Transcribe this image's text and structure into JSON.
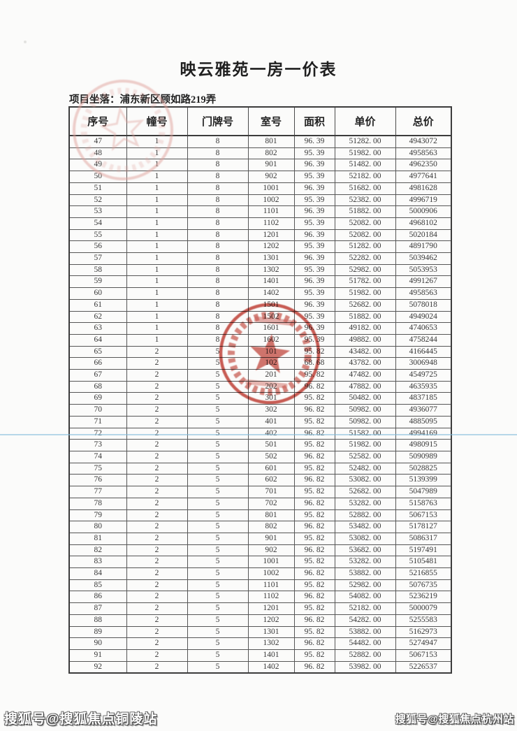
{
  "document": {
    "title": "映云雅苑一房一价表",
    "project_location": "项目坐落：浦东新区顾如路219弄"
  },
  "table": {
    "headers": [
      "序号",
      "幢号",
      "门牌号",
      "室号",
      "面积",
      "单价",
      "总价"
    ],
    "rows": [
      [
        "47",
        "1",
        "8",
        "801",
        "96. 39",
        "51282. 00",
        "4943072"
      ],
      [
        "48",
        "1",
        "8",
        "802",
        "95. 39",
        "51982. 00",
        "4958563"
      ],
      [
        "49",
        "1",
        "8",
        "901",
        "96. 39",
        "51482. 00",
        "4962350"
      ],
      [
        "50",
        "1",
        "8",
        "902",
        "95. 39",
        "52182. 00",
        "4977641"
      ],
      [
        "51",
        "1",
        "8",
        "1001",
        "96. 39",
        "51682. 00",
        "4981628"
      ],
      [
        "52",
        "1",
        "8",
        "1002",
        "95. 39",
        "52382. 00",
        "4996719"
      ],
      [
        "53",
        "1",
        "8",
        "1101",
        "96. 39",
        "51882. 00",
        "5000906"
      ],
      [
        "54",
        "1",
        "8",
        "1102",
        "95. 39",
        "52082. 00",
        "4968102"
      ],
      [
        "55",
        "1",
        "8",
        "1201",
        "96. 39",
        "52082. 00",
        "5020184"
      ],
      [
        "56",
        "1",
        "8",
        "1202",
        "95. 39",
        "51282. 00",
        "4891790"
      ],
      [
        "57",
        "1",
        "8",
        "1301",
        "96. 39",
        "52282. 00",
        "5039462"
      ],
      [
        "58",
        "1",
        "8",
        "1302",
        "95. 39",
        "52982. 00",
        "5053953"
      ],
      [
        "59",
        "1",
        "8",
        "1401",
        "96. 39",
        "51782. 00",
        "4991267"
      ],
      [
        "60",
        "1",
        "8",
        "1402",
        "95. 39",
        "51982. 00",
        "4958563"
      ],
      [
        "61",
        "1",
        "8",
        "1501",
        "96. 39",
        "52682. 00",
        "5078018"
      ],
      [
        "62",
        "1",
        "8",
        "1502",
        "95. 39",
        "51882. 00",
        "4949024"
      ],
      [
        "63",
        "1",
        "8",
        "1601",
        "96. 39",
        "49182. 00",
        "4740653"
      ],
      [
        "64",
        "1",
        "8",
        "1602",
        "95. 39",
        "49882. 00",
        "4758244"
      ],
      [
        "65",
        "2",
        "5",
        "101",
        "95. 82",
        "43482. 00",
        "4166445"
      ],
      [
        "66",
        "2",
        "5",
        "102",
        "68. 68",
        "43782. 00",
        "3006948"
      ],
      [
        "67",
        "2",
        "5",
        "201",
        "95. 82",
        "47482. 00",
        "4549725"
      ],
      [
        "68",
        "2",
        "5",
        "202",
        "96. 82",
        "47882. 00",
        "4635935"
      ],
      [
        "69",
        "2",
        "5",
        "301",
        "95. 82",
        "50482. 00",
        "4837185"
      ],
      [
        "70",
        "2",
        "5",
        "302",
        "96. 82",
        "50982. 00",
        "4936077"
      ],
      [
        "71",
        "2",
        "5",
        "401",
        "95. 82",
        "50982. 00",
        "4885095"
      ],
      [
        "72",
        "2",
        "5",
        "402",
        "96. 82",
        "51582. 00",
        "4994169"
      ],
      [
        "73",
        "2",
        "5",
        "501",
        "95. 82",
        "51982. 00",
        "4980915"
      ],
      [
        "74",
        "2",
        "5",
        "502",
        "96. 82",
        "52582. 00",
        "5090989"
      ],
      [
        "75",
        "2",
        "5",
        "601",
        "95. 82",
        "52482. 00",
        "5028825"
      ],
      [
        "76",
        "2",
        "5",
        "602",
        "96. 82",
        "53082. 00",
        "5139399"
      ],
      [
        "77",
        "2",
        "5",
        "701",
        "95. 82",
        "52682. 00",
        "5047989"
      ],
      [
        "78",
        "2",
        "5",
        "702",
        "96. 82",
        "53282. 00",
        "5158763"
      ],
      [
        "79",
        "2",
        "5",
        "801",
        "95. 82",
        "52882. 00",
        "5067153"
      ],
      [
        "80",
        "2",
        "5",
        "802",
        "96. 82",
        "53482. 00",
        "5178127"
      ],
      [
        "81",
        "2",
        "5",
        "901",
        "95. 82",
        "53082. 00",
        "5086317"
      ],
      [
        "82",
        "2",
        "5",
        "902",
        "96. 82",
        "53682. 00",
        "5197491"
      ],
      [
        "83",
        "2",
        "5",
        "1001",
        "95. 82",
        "53282. 00",
        "5105481"
      ],
      [
        "84",
        "2",
        "5",
        "1002",
        "96. 82",
        "53882. 00",
        "5216855"
      ],
      [
        "85",
        "2",
        "5",
        "1101",
        "95. 82",
        "52982. 00",
        "5076735"
      ],
      [
        "86",
        "2",
        "5",
        "1102",
        "96. 82",
        "54082. 00",
        "5236219"
      ],
      [
        "87",
        "2",
        "5",
        "1201",
        "95. 82",
        "52182. 00",
        "5000079"
      ],
      [
        "88",
        "2",
        "5",
        "1202",
        "96. 82",
        "54282. 00",
        "5255583"
      ],
      [
        "89",
        "2",
        "5",
        "1301",
        "95. 82",
        "53882. 00",
        "5162973"
      ],
      [
        "90",
        "2",
        "5",
        "1302",
        "96. 82",
        "54482. 00",
        "5274947"
      ],
      [
        "91",
        "2",
        "5",
        "1401",
        "95. 82",
        "52882. 00",
        "5067153"
      ],
      [
        "92",
        "2",
        "5",
        "1402",
        "96. 82",
        "53982. 00",
        "5226537"
      ]
    ]
  },
  "stamps": [
    {
      "description": "faint circular red seal with star, over table header area",
      "legible": false
    },
    {
      "description": "red circular seal with star and rim characters, over middle rows",
      "legible": false
    }
  ],
  "watermarks": {
    "bottom_left": "搜狐号@搜狐焦点铜陵站",
    "bottom_right": "搜狐号@搜狐焦点杭州站"
  },
  "colors": {
    "seal_red": "#c0392f",
    "seal_faint_red": "#dfa09a",
    "table_border": "#4a4a4a",
    "text": "#383838",
    "scan_line_blue": "#7dbad8",
    "paper": "#fbfbfa"
  }
}
